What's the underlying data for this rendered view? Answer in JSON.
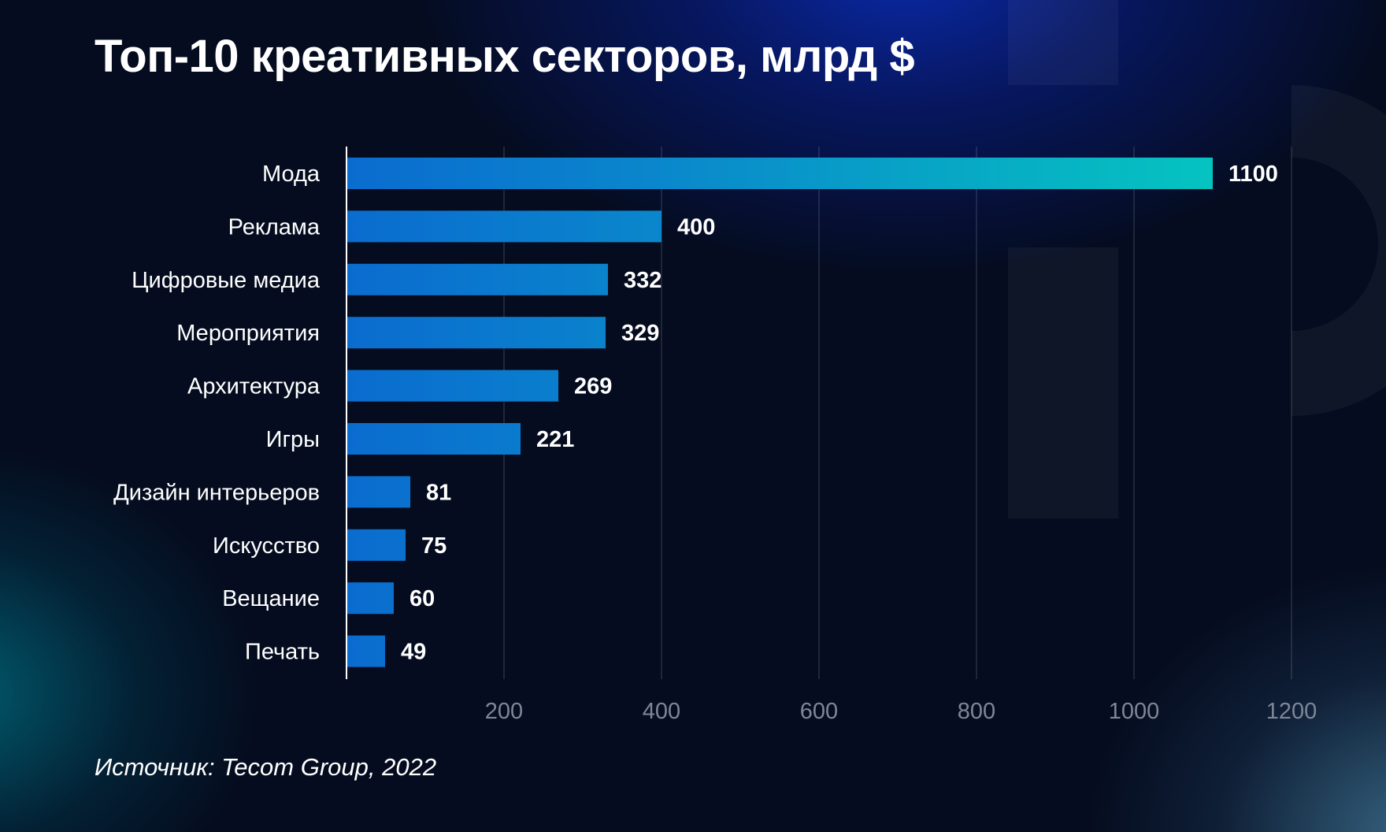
{
  "title": "Топ-10 креативных секторов, млрд $",
  "source": "Источник: Tecom Group, 2022",
  "colors": {
    "background": "#050c1f",
    "bar_start": "#0a6ccf",
    "bar_end": "#05c4c0",
    "tick_label": "#7f8796",
    "grid": "#ffffff"
  },
  "chart_data": {
    "type": "bar",
    "orientation": "horizontal",
    "title": "Топ-10 креативных секторов, млрд $",
    "categories": [
      "Мода",
      "Реклама",
      "Цифровые медиа",
      "Мероприятия",
      "Архитектура",
      "Игры",
      "Дизайн интерьеров",
      "Искусство",
      "Вещание",
      "Печать"
    ],
    "values": [
      1100,
      400,
      332,
      329,
      269,
      221,
      81,
      75,
      60,
      49
    ],
    "value_labels": [
      "1100",
      "400",
      "332",
      "329",
      "269",
      "221",
      "81",
      "75",
      "60",
      "49"
    ],
    "xlim": [
      0,
      1200
    ],
    "xticks": [
      200,
      400,
      600,
      800,
      1000,
      1200
    ],
    "xtick_labels": [
      "200",
      "400",
      "600",
      "800",
      "1000",
      "1200"
    ],
    "xlabel": "",
    "ylabel": "",
    "grid": true,
    "legend": "none"
  }
}
